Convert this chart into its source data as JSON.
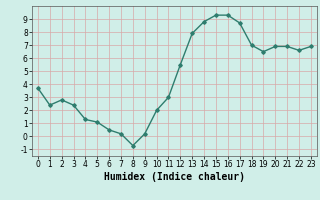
{
  "x": [
    0,
    1,
    2,
    3,
    4,
    5,
    6,
    7,
    8,
    9,
    10,
    11,
    12,
    13,
    14,
    15,
    16,
    17,
    18,
    19,
    20,
    21,
    22,
    23
  ],
  "y": [
    3.7,
    2.4,
    2.8,
    2.4,
    1.3,
    1.1,
    0.5,
    0.2,
    -0.7,
    0.2,
    2.0,
    3.0,
    5.5,
    7.9,
    8.8,
    9.3,
    9.3,
    8.7,
    7.0,
    6.5,
    6.9,
    6.9,
    6.6,
    6.9
  ],
  "line_color": "#2e7d6e",
  "marker": "D",
  "marker_size": 1.8,
  "line_width": 1.0,
  "bg_color": "#d0eee8",
  "grid_color": "#d8a8a8",
  "xlabel": "Humidex (Indice chaleur)",
  "xlabel_fontsize": 7,
  "xlabel_weight": "bold",
  "xlim": [
    -0.5,
    23.5
  ],
  "ylim": [
    -1.5,
    10.0
  ],
  "yticks": [
    -1,
    0,
    1,
    2,
    3,
    4,
    5,
    6,
    7,
    8,
    9
  ],
  "xticks": [
    0,
    1,
    2,
    3,
    4,
    5,
    6,
    7,
    8,
    9,
    10,
    11,
    12,
    13,
    14,
    15,
    16,
    17,
    18,
    19,
    20,
    21,
    22,
    23
  ],
  "tick_fontsize": 5.5
}
